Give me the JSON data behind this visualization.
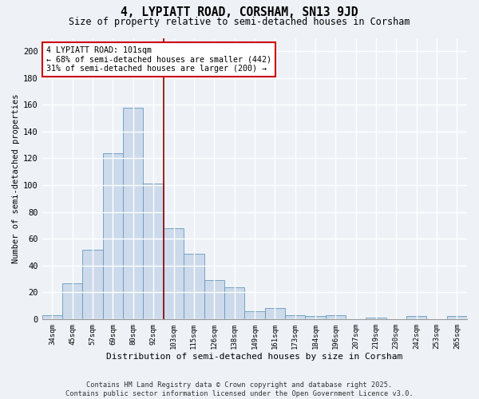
{
  "title1": "4, LYPIATT ROAD, CORSHAM, SN13 9JD",
  "title2": "Size of property relative to semi-detached houses in Corsham",
  "xlabel": "Distribution of semi-detached houses by size in Corsham",
  "ylabel": "Number of semi-detached properties",
  "categories": [
    "34sqm",
    "45sqm",
    "57sqm",
    "69sqm",
    "80sqm",
    "92sqm",
    "103sqm",
    "115sqm",
    "126sqm",
    "138sqm",
    "149sqm",
    "161sqm",
    "173sqm",
    "184sqm",
    "196sqm",
    "207sqm",
    "219sqm",
    "230sqm",
    "242sqm",
    "253sqm",
    "265sqm"
  ],
  "values": [
    3,
    27,
    52,
    124,
    158,
    101,
    68,
    49,
    29,
    24,
    6,
    8,
    3,
    2,
    3,
    0,
    1,
    0,
    2,
    0,
    2
  ],
  "bar_color": "#ccdaeb",
  "bar_edge_color": "#6699bb",
  "vline_x": 5.5,
  "annotation_text": "4 LYPIATT ROAD: 101sqm\n← 68% of semi-detached houses are smaller (442)\n31% of semi-detached houses are larger (200) →",
  "vline_color": "#8b0000",
  "box_facecolor": "#ffffff",
  "box_edgecolor": "#cc0000",
  "ylim": [
    0,
    210
  ],
  "yticks": [
    0,
    20,
    40,
    60,
    80,
    100,
    120,
    140,
    160,
    180,
    200
  ],
  "footnote": "Contains HM Land Registry data © Crown copyright and database right 2025.\nContains public sector information licensed under the Open Government Licence v3.0.",
  "bg_color": "#eef2f7",
  "grid_color": "#ffffff"
}
